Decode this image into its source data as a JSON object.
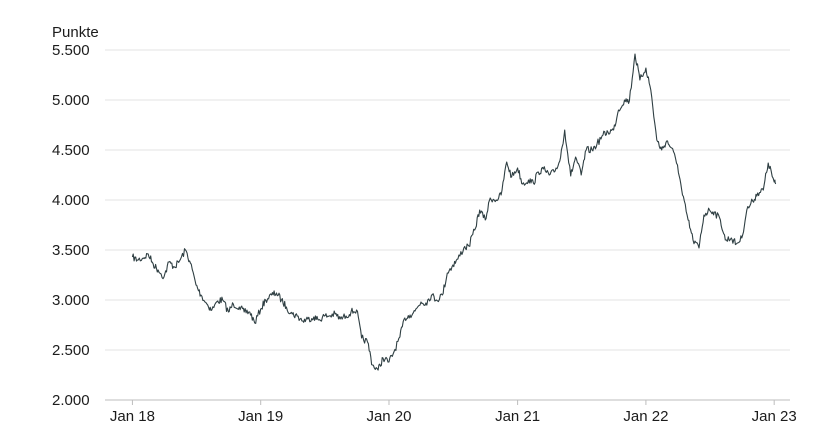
{
  "chart_data": {
    "type": "line",
    "ylabel": "Punkte",
    "ylim": [
      2000,
      5500
    ],
    "y_ticks": [
      "2.000",
      "2.500",
      "3.000",
      "3.500",
      "4.000",
      "4.500",
      "5.000",
      "5.500"
    ],
    "y_tick_values": [
      2000,
      2500,
      3000,
      3500,
      4000,
      4500,
      5000,
      5500
    ],
    "x_ticks": [
      "Jan 18",
      "Jan 19",
      "Jan 20",
      "Jan 21",
      "Jan 22",
      "Jan 23"
    ],
    "x_tick_values": [
      "2018-01-01",
      "2019-01-01",
      "2020-01-01",
      "2021-01-01",
      "2022-01-01",
      "2023-01-01"
    ],
    "xlim": [
      "2017-10-15",
      "2023-02-15"
    ],
    "grid": "horizontal",
    "colors": {
      "line": "#2f3f43",
      "grid": "#e3e3e3",
      "axis": "#bdbdbd",
      "text": "#1c1c1c"
    },
    "series": [
      {
        "x": [
          "2018-01-01",
          "2018-01-15",
          "2018-02-01",
          "2018-02-15",
          "2018-03-01",
          "2018-03-15",
          "2018-04-01",
          "2018-04-15",
          "2018-05-01",
          "2018-05-15",
          "2018-06-01",
          "2018-06-15",
          "2018-07-01",
          "2018-07-15",
          "2018-08-01",
          "2018-08-15",
          "2018-09-01",
          "2018-09-15",
          "2018-10-01",
          "2018-10-15",
          "2018-11-01",
          "2018-11-15",
          "2018-12-01",
          "2018-12-15",
          "2019-01-01",
          "2019-01-15",
          "2019-02-01",
          "2019-02-15",
          "2019-03-01",
          "2019-03-15",
          "2019-04-01",
          "2019-04-15",
          "2019-05-01",
          "2019-05-15",
          "2019-06-01",
          "2019-06-15",
          "2019-07-01",
          "2019-07-15",
          "2019-08-01",
          "2019-08-15",
          "2019-09-01",
          "2019-09-15",
          "2019-10-01",
          "2019-10-15",
          "2019-11-01",
          "2019-11-15",
          "2019-12-01",
          "2019-12-15",
          "2020-01-01",
          "2020-01-15",
          "2020-02-01",
          "2020-02-15",
          "2020-03-01",
          "2020-03-15",
          "2020-04-01",
          "2020-04-15",
          "2020-05-01",
          "2020-05-15",
          "2020-06-01",
          "2020-06-15",
          "2020-07-01",
          "2020-07-15",
          "2020-08-01",
          "2020-08-15",
          "2020-09-01",
          "2020-09-15",
          "2020-10-01",
          "2020-10-15",
          "2020-11-01",
          "2020-11-15",
          "2020-12-01",
          "2020-12-15",
          "2021-01-01",
          "2021-01-15",
          "2021-02-01",
          "2021-02-15",
          "2021-03-01",
          "2021-03-15",
          "2021-04-01",
          "2021-04-15",
          "2021-05-01",
          "2021-05-15",
          "2021-06-01",
          "2021-06-15",
          "2021-07-01",
          "2021-07-15",
          "2021-08-01",
          "2021-08-15",
          "2021-09-01",
          "2021-09-15",
          "2021-10-01",
          "2021-10-15",
          "2021-11-01",
          "2021-11-15",
          "2021-12-01",
          "2021-12-15",
          "2022-01-01",
          "2022-01-15",
          "2022-02-01",
          "2022-02-15",
          "2022-03-01",
          "2022-03-15",
          "2022-04-01",
          "2022-04-15",
          "2022-05-01",
          "2022-05-15",
          "2022-06-01",
          "2022-06-15",
          "2022-07-01",
          "2022-07-15",
          "2022-08-01",
          "2022-08-15",
          "2022-09-01",
          "2022-09-15",
          "2022-10-01",
          "2022-10-15",
          "2022-11-01",
          "2022-11-15",
          "2022-12-01",
          "2022-12-15",
          "2023-01-01",
          "2023-01-05"
        ],
        "values": [
          3430,
          3400,
          3420,
          3460,
          3360,
          3300,
          3230,
          3380,
          3330,
          3390,
          3500,
          3370,
          3150,
          3050,
          2960,
          2900,
          2990,
          3000,
          2880,
          2960,
          2930,
          2880,
          2880,
          2770,
          2910,
          3000,
          3050,
          3070,
          3000,
          2930,
          2860,
          2840,
          2790,
          2810,
          2830,
          2800,
          2840,
          2840,
          2860,
          2810,
          2840,
          2880,
          2900,
          2620,
          2580,
          2350,
          2300,
          2420,
          2380,
          2480,
          2630,
          2820,
          2850,
          2890,
          2980,
          2970,
          3050,
          3000,
          3050,
          3270,
          3350,
          3410,
          3520,
          3540,
          3700,
          3900,
          3800,
          4020,
          4000,
          4050,
          4380,
          4230,
          4320,
          4160,
          4200,
          4170,
          4280,
          4310,
          4250,
          4280,
          4390,
          4700,
          4240,
          4430,
          4250,
          4500,
          4500,
          4560,
          4650,
          4680,
          4700,
          4900,
          5000,
          4990,
          5460,
          5200,
          5320,
          5100,
          4600,
          4500,
          4590,
          4520,
          4350,
          4050,
          3800,
          3600,
          3520,
          3850,
          3900,
          3880,
          3800,
          3600,
          3620,
          3560,
          3620,
          3900,
          3990,
          4070,
          4100,
          4370,
          4180,
          4160
        ]
      }
    ]
  }
}
